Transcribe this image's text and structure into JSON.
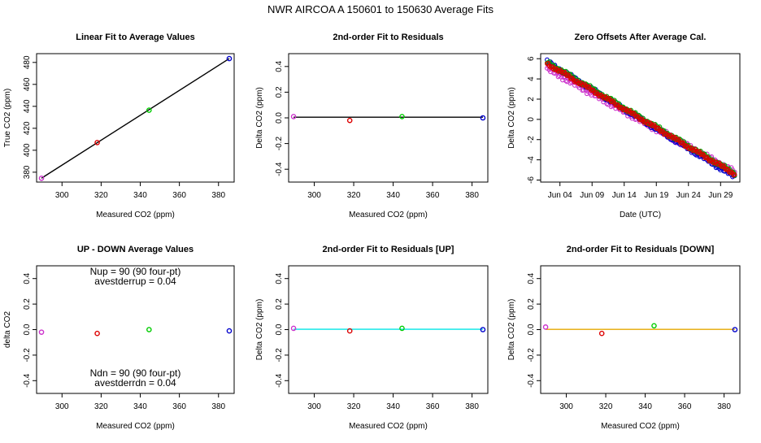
{
  "page_title": "NWR   AIRCOA A   150601 to 150630   Average Fits",
  "chart_data": [
    {
      "type": "scatter",
      "title": "Linear Fit to Average Values",
      "xlabel": "Measured CO2 (ppm)",
      "ylabel": "True CO2 (ppm)",
      "xlim": [
        287,
        388
      ],
      "ylim": [
        371,
        488
      ],
      "xticks": [
        300,
        320,
        340,
        360,
        380
      ],
      "yticks": [
        380,
        400,
        420,
        440,
        460,
        480
      ],
      "points": [
        {
          "x": 289.5,
          "y": 374.5,
          "color": "#cc33cc"
        },
        {
          "x": 318.0,
          "y": 407.0,
          "color": "#dd0000"
        },
        {
          "x": 344.5,
          "y": 436.5,
          "color": "#00cc00"
        },
        {
          "x": 385.5,
          "y": 483.5,
          "color": "#0000cc"
        }
      ],
      "fit_line": [
        {
          "x": 289.5,
          "y": 374.5
        },
        {
          "x": 385.5,
          "y": 483.5
        }
      ],
      "fit_color": "#000000"
    },
    {
      "type": "scatter",
      "title": "2nd-order Fit to Residuals",
      "xlabel": "Measured CO2 (ppm)",
      "ylabel": "Delta CO2 (ppm)",
      "xlim": [
        287,
        388
      ],
      "ylim": [
        -0.5,
        0.5
      ],
      "xticks": [
        300,
        320,
        340,
        360,
        380
      ],
      "yticks": [
        -0.4,
        -0.2,
        0.0,
        0.2,
        0.4
      ],
      "ytick_labels": [
        "-0.4",
        "-0.2",
        "0.0",
        "0.2",
        "0.4"
      ],
      "points": [
        {
          "x": 289.5,
          "y": 0.01,
          "color": "#cc33cc"
        },
        {
          "x": 318.0,
          "y": -0.02,
          "color": "#dd0000"
        },
        {
          "x": 344.5,
          "y": 0.01,
          "color": "#00cc00"
        },
        {
          "x": 385.5,
          "y": 0.0,
          "color": "#0000cc"
        }
      ],
      "fit_line": [
        {
          "x": 289.5,
          "y": 0.005
        },
        {
          "x": 385.5,
          "y": 0.005
        }
      ],
      "fit_color": "#000000"
    },
    {
      "type": "scatter",
      "title": "Zero Offsets After Average Cal.",
      "xlabel": "Date (UTC)",
      "ylabel": "Delta CO2 (ppm)",
      "xlim": [
        0,
        31
      ],
      "ylim": [
        -6.2,
        6.5
      ],
      "xticks": [
        3,
        8,
        13,
        18,
        23,
        28
      ],
      "xtick_labels": [
        "Jun 04",
        "Jun 09",
        "Jun 14",
        "Jun 19",
        "Jun 24",
        "Jun 29"
      ],
      "yticks": [
        -6,
        -4,
        -2,
        0,
        2,
        4,
        6
      ],
      "series": [
        {
          "color": "#cc33cc",
          "start": 5.3,
          "end": -5.0,
          "spread": 0.25,
          "offset": -0.25
        },
        {
          "color": "#0000cc",
          "start": 5.7,
          "end": -5.7,
          "spread": 0.15,
          "offset": 0.0
        },
        {
          "color": "#00aa00",
          "start": 5.6,
          "end": -5.4,
          "spread": 0.15,
          "offset": 0.05
        },
        {
          "color": "#dd0000",
          "start": 5.5,
          "end": -5.4,
          "spread": 0.12,
          "offset": 0.0
        }
      ],
      "x_start": 1.0,
      "x_end": 30.2
    },
    {
      "type": "scatter",
      "title": "UP - DOWN Average Values",
      "xlabel": "Measured CO2 (ppm)",
      "ylabel": "delta CO2",
      "xlim": [
        287,
        388
      ],
      "ylim": [
        -0.5,
        0.5
      ],
      "xticks": [
        300,
        320,
        340,
        360,
        380
      ],
      "yticks": [
        -0.4,
        -0.2,
        0.0,
        0.2,
        0.4
      ],
      "ytick_labels": [
        "-0.4",
        "-0.2",
        "0.0",
        "0.2",
        "0.4"
      ],
      "points": [
        {
          "x": 289.5,
          "y": -0.02,
          "color": "#cc33cc"
        },
        {
          "x": 318.0,
          "y": -0.03,
          "color": "#dd0000"
        },
        {
          "x": 344.5,
          "y": 0.0,
          "color": "#00cc00"
        },
        {
          "x": 385.5,
          "y": -0.01,
          "color": "#0000cc"
        }
      ],
      "annotations": [
        "Nup = 90 (90 four-pt)",
        "avestderrup =  0.04",
        "Ndn = 90 (90 four-pt)",
        "avestderrdn =  0.04"
      ]
    },
    {
      "type": "scatter",
      "title": "2nd-order Fit to Residuals [UP]",
      "xlabel": "Measured CO2 (ppm)",
      "ylabel": "Delta CO2 (ppm)",
      "xlim": [
        287,
        388
      ],
      "ylim": [
        -0.5,
        0.5
      ],
      "xticks": [
        300,
        320,
        340,
        360,
        380
      ],
      "yticks": [
        -0.4,
        -0.2,
        0.0,
        0.2,
        0.4
      ],
      "ytick_labels": [
        "-0.4",
        "-0.2",
        "0.0",
        "0.2",
        "0.4"
      ],
      "points": [
        {
          "x": 289.5,
          "y": 0.01,
          "color": "#cc33cc"
        },
        {
          "x": 318.0,
          "y": -0.01,
          "color": "#dd0000"
        },
        {
          "x": 344.5,
          "y": 0.01,
          "color": "#00cc00"
        },
        {
          "x": 385.5,
          "y": 0.0,
          "color": "#0000cc"
        }
      ],
      "fit_line": [
        {
          "x": 289.5,
          "y": 0.003
        },
        {
          "x": 385.5,
          "y": 0.003
        }
      ],
      "fit_color": "#00e5e5"
    },
    {
      "type": "scatter",
      "title": "2nd-order Fit to Residuals [DOWN]",
      "xlabel": "Measured CO2 (ppm)",
      "ylabel": "Delta CO2 (ppm)",
      "xlim": [
        287,
        388
      ],
      "ylim": [
        -0.5,
        0.5
      ],
      "xticks": [
        300,
        320,
        340,
        360,
        380
      ],
      "yticks": [
        -0.4,
        -0.2,
        0.0,
        0.2,
        0.4
      ],
      "ytick_labels": [
        "-0.4",
        "-0.2",
        "0.0",
        "0.2",
        "0.4"
      ],
      "points": [
        {
          "x": 289.5,
          "y": 0.02,
          "color": "#cc33cc"
        },
        {
          "x": 318.0,
          "y": -0.03,
          "color": "#dd0000"
        },
        {
          "x": 344.5,
          "y": 0.03,
          "color": "#00cc00"
        },
        {
          "x": 385.5,
          "y": 0.0,
          "color": "#0000cc"
        }
      ],
      "fit_line": [
        {
          "x": 289.5,
          "y": 0.002
        },
        {
          "x": 385.5,
          "y": 0.002
        }
      ],
      "fit_color": "#e6a800"
    }
  ]
}
